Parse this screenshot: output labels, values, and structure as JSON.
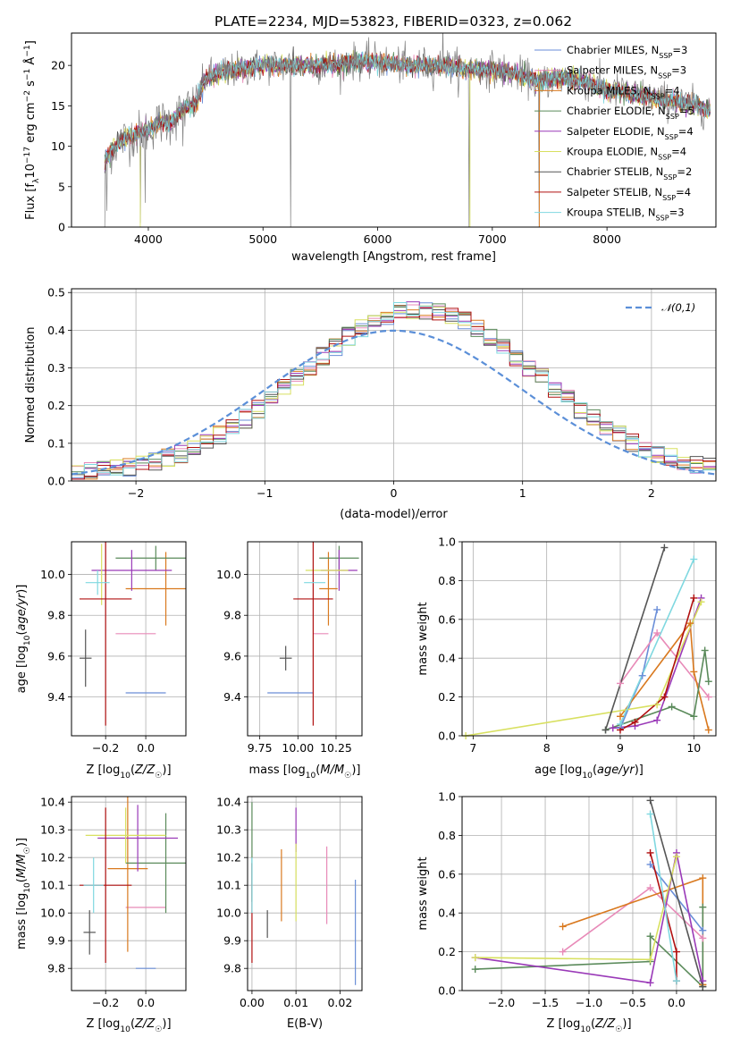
{
  "title": "PLATE=2234, MJD=53823, FIBERID=0323, z=0.062",
  "colors": [
    "#6a8ed8",
    "#e88ab8",
    "#d9791f",
    "#5a8a5a",
    "#9a3ab8",
    "#d8e060",
    "#555555",
    "#b01010",
    "#7fd8e0"
  ],
  "chart_data": [
    {
      "id": "spectrum",
      "type": "line",
      "title": "PLATE=2234, MJD=53823, FIBERID=0323, z=0.062",
      "xlabel": "wavelength [Angstrom, rest frame]",
      "ylabel": "Flux [f_λ 10^-17 erg cm^-2 s^-1 Å^-1]",
      "xlim": [
        3330,
        8950
      ],
      "ylim": [
        0,
        24
      ],
      "xticks": [
        "4000",
        "5000",
        "6000",
        "7000",
        "8000"
      ],
      "yticks": [
        "0",
        "5",
        "10",
        "15",
        "20"
      ],
      "grid": false,
      "legend": "top-right",
      "continuum": {
        "x": [
          3620,
          3700,
          3800,
          3900,
          4000,
          4100,
          4200,
          4300,
          4400,
          4500,
          4600,
          4800,
          5000,
          5200,
          5400,
          5600,
          5800,
          6000,
          6200,
          6400,
          6600,
          6800,
          7000,
          7200,
          7400,
          7600,
          7800,
          8000,
          8200,
          8400,
          8600,
          8800,
          8900
        ],
        "y": [
          8,
          10,
          11,
          11.5,
          12,
          13,
          13,
          14.5,
          15,
          18.5,
          19,
          19.5,
          20,
          20,
          20,
          20,
          20.5,
          20.5,
          20,
          20,
          20,
          19.5,
          19.5,
          19,
          18,
          18.5,
          18,
          17,
          16.5,
          16,
          15.5,
          15,
          14.5
        ]
      },
      "series": [
        {
          "name": "Chabrier MILES, N_SSP=3"
        },
        {
          "name": "Salpeter MILES, N_SSP=3"
        },
        {
          "name": "Kroupa MILES, N_SSP=4"
        },
        {
          "name": "Chabrier ELODIE, N_SSP=5"
        },
        {
          "name": "Salpeter ELODIE, N_SSP=4"
        },
        {
          "name": "Kroupa ELODIE, N_SSP=4"
        },
        {
          "name": "Chabrier STELIB, N_SSP=2"
        },
        {
          "name": "Salpeter STELIB, N_SSP=4"
        },
        {
          "name": "Kroupa STELIB, N_SSP=3"
        }
      ]
    },
    {
      "id": "residuals",
      "type": "histogram",
      "xlabel": "(data-model)/error",
      "ylabel": "Normed distribution",
      "xlim": [
        -2.5,
        2.5
      ],
      "ylim": [
        0,
        0.51
      ],
      "xticks": [
        "−2",
        "−1",
        "0",
        "1",
        "2"
      ],
      "yticks": [
        "0.0",
        "0.1",
        "0.2",
        "0.3",
        "0.4",
        "0.5"
      ],
      "grid": true,
      "legend": "top-right",
      "reference_name": "𝒩(0,1)",
      "bin_width": 0.1
    },
    {
      "id": "age_vs_Z",
      "type": "errorbar",
      "xlabel": "Z [log10(Z/Z☉)]",
      "ylabel": "age  [log10(age/yr)]",
      "xlim": [
        -0.37,
        0.2
      ],
      "ylim": [
        9.21,
        10.16
      ],
      "xticks": [
        "−0.2",
        "0.0"
      ],
      "yticks": [
        "9.4",
        "9.6",
        "9.8",
        "10.0"
      ],
      "grid": true,
      "points": [
        {
          "x": 0.0,
          "y": 9.42,
          "xe": 0.1,
          "ye": 0.0
        },
        {
          "x": -0.05,
          "y": 9.71,
          "xe": 0.1,
          "ye": 0.0
        },
        {
          "x": 0.1,
          "y": 9.93,
          "xe": 0.2,
          "ye": 0.18
        },
        {
          "x": 0.05,
          "y": 10.08,
          "xe": 0.2,
          "ye": 0.06
        },
        {
          "x": -0.07,
          "y": 10.02,
          "xe": 0.2,
          "ye": 0.1
        },
        {
          "x": -0.22,
          "y": 10.0,
          "xe": 0.0,
          "ye": 0.15
        },
        {
          "x": -0.3,
          "y": 9.59,
          "xe": 0.03,
          "ye": 0.14
        },
        {
          "x": -0.2,
          "y": 9.88,
          "xe": 0.13,
          "ye": 0.62
        },
        {
          "x": -0.24,
          "y": 9.96,
          "xe": 0.06,
          "ye": 0.06
        }
      ]
    },
    {
      "id": "age_vs_mass",
      "type": "errorbar",
      "xlabel": "mass [log10(M/M☉)]",
      "ylabel": "",
      "xlim": [
        9.67,
        10.42
      ],
      "ylim": [
        9.21,
        10.16
      ],
      "xticks": [
        "9.75",
        "10.00",
        "10.25"
      ],
      "yticks": [
        "9.4",
        "9.6",
        "9.8",
        "10.0"
      ],
      "grid": true,
      "points": [
        {
          "x": 9.95,
          "y": 9.42,
          "xe": 0.15,
          "ye": 0.0
        },
        {
          "x": 10.15,
          "y": 9.71,
          "xe": 0.05,
          "ye": 0.0
        },
        {
          "x": 10.2,
          "y": 9.93,
          "xe": 0.06,
          "ye": 0.18
        },
        {
          "x": 10.27,
          "y": 10.08,
          "xe": 0.13,
          "ye": 0.06
        },
        {
          "x": 10.27,
          "y": 10.02,
          "xe": 0.12,
          "ye": 0.1
        },
        {
          "x": 10.19,
          "y": 10.02,
          "xe": 0.14,
          "ye": 0.0
        },
        {
          "x": 9.92,
          "y": 9.59,
          "xe": 0.04,
          "ye": 0.06
        },
        {
          "x": 10.1,
          "y": 9.88,
          "xe": 0.13,
          "ye": 0.62
        },
        {
          "x": 10.11,
          "y": 9.96,
          "xe": 0.07,
          "ye": 0.0
        }
      ]
    },
    {
      "id": "weight_vs_age",
      "type": "line",
      "xlabel": "age  [log10(age/yr)]",
      "ylabel": "mass weight",
      "xlim": [
        6.85,
        10.3
      ],
      "ylim": [
        0,
        1.0
      ],
      "xticks": [
        "7",
        "8",
        "9",
        "10"
      ],
      "yticks": [
        "0.0",
        "0.2",
        "0.4",
        "0.6",
        "0.8",
        "1.0"
      ],
      "grid": true,
      "series": [
        {
          "x": [
            9.0,
            9.3,
            9.5
          ],
          "y": [
            0.04,
            0.31,
            0.65
          ]
        },
        {
          "x": [
            9.0,
            9.5,
            10.2
          ],
          "y": [
            0.27,
            0.53,
            0.2
          ]
        },
        {
          "x": [
            9.0,
            9.95,
            10.0,
            10.2
          ],
          "y": [
            0.1,
            0.58,
            0.33,
            0.03
          ]
        },
        {
          "x": [
            8.8,
            9.7,
            10.0,
            10.15,
            10.2
          ],
          "y": [
            0.03,
            0.15,
            0.1,
            0.44,
            0.28
          ]
        },
        {
          "x": [
            8.9,
            9.2,
            9.5,
            10.1
          ],
          "y": [
            0.04,
            0.05,
            0.08,
            0.71
          ]
        },
        {
          "x": [
            6.9,
            9.5,
            10.1
          ],
          "y": [
            0.0,
            0.16,
            0.69
          ]
        },
        {
          "x": [
            8.8,
            9.6
          ],
          "y": [
            0.03,
            0.97
          ]
        },
        {
          "x": [
            9.0,
            9.2,
            9.6,
            10.0
          ],
          "y": [
            0.03,
            0.07,
            0.2,
            0.71
          ]
        },
        {
          "x": [
            9.0,
            10.0
          ],
          "y": [
            0.06,
            0.91
          ]
        }
      ]
    },
    {
      "id": "mass_vs_Z",
      "type": "errorbar",
      "xlabel": "Z [log10(Z/Z☉)]",
      "ylabel": "mass [log10(M/M☉)]",
      "xlim": [
        -0.37,
        0.2
      ],
      "ylim": [
        9.72,
        10.42
      ],
      "xticks": [
        "−0.2",
        "0.0"
      ],
      "yticks": [
        "9.8",
        "9.9",
        "10.0",
        "10.1",
        "10.2",
        "10.3",
        "10.4"
      ],
      "grid": true,
      "points": [
        {
          "x": -0.0,
          "y": 9.8,
          "xe": 0.05,
          "ye": 0.0
        },
        {
          "x": 0.0,
          "y": 10.02,
          "xe": 0.1,
          "ye": 0.0
        },
        {
          "x": -0.09,
          "y": 10.16,
          "xe": 0.1,
          "ye": 0.3
        },
        {
          "x": 0.1,
          "y": 10.18,
          "xe": 0.2,
          "ye": 0.18
        },
        {
          "x": -0.04,
          "y": 10.27,
          "xe": 0.2,
          "ye": 0.12
        },
        {
          "x": -0.1,
          "y": 10.28,
          "xe": 0.2,
          "ye": 0.1
        },
        {
          "x": -0.28,
          "y": 9.93,
          "xe": 0.03,
          "ye": 0.08
        },
        {
          "x": -0.2,
          "y": 10.1,
          "xe": 0.13,
          "ye": 0.28
        },
        {
          "x": -0.26,
          "y": 10.1,
          "xe": 0.05,
          "ye": 0.1
        }
      ]
    },
    {
      "id": "mass_vs_EBV",
      "type": "errorbar",
      "xlabel": "E(B-V)",
      "ylabel": "",
      "xlim": [
        -0.001,
        0.025
      ],
      "ylim": [
        9.72,
        10.42
      ],
      "xticks": [
        "0.00",
        "0.01",
        "0.02"
      ],
      "yticks": [
        "9.8",
        "9.9",
        "10.0",
        "10.1",
        "10.2",
        "10.3",
        "10.4"
      ],
      "grid": true,
      "points": [
        {
          "x": 0.0235,
          "y": 9.93,
          "xe": 0.0,
          "ye": 0.19
        },
        {
          "x": 0.017,
          "y": 10.1,
          "xe": 0.0,
          "ye": 0.14
        },
        {
          "x": 0.0067,
          "y": 10.1,
          "xe": 0.0,
          "ye": 0.13
        },
        {
          "x": 0.0,
          "y": 10.22,
          "xe": 0.0,
          "ye": 0.18
        },
        {
          "x": 0.01,
          "y": 10.3,
          "xe": 0.0,
          "ye": 0.08
        },
        {
          "x": 0.01,
          "y": 10.11,
          "xe": 0.0,
          "ye": 0.14
        },
        {
          "x": 0.0035,
          "y": 9.96,
          "xe": 0.0,
          "ye": 0.05
        },
        {
          "x": 0.0,
          "y": 10.0,
          "xe": 0.0,
          "ye": 0.18
        },
        {
          "x": 0.0,
          "y": 10.1,
          "xe": 0.0,
          "ye": 0.1
        }
      ]
    },
    {
      "id": "weight_vs_Z",
      "type": "line",
      "xlabel": "Z [log10(Z/Z☉)]",
      "ylabel": "mass weight",
      "xlim": [
        -2.45,
        0.45
      ],
      "ylim": [
        0,
        1.0
      ],
      "xticks": [
        "−2.0",
        "−1.5",
        "−1.0",
        "−0.5",
        "0.0"
      ],
      "yticks": [
        "0.0",
        "0.2",
        "0.4",
        "0.6",
        "0.8",
        "1.0"
      ],
      "grid": true,
      "series": [
        {
          "x": [
            -0.3,
            0.3
          ],
          "y": [
            0.65,
            0.31
          ]
        },
        {
          "x": [
            -1.3,
            -0.3,
            0.3
          ],
          "y": [
            0.2,
            0.53,
            0.27
          ]
        },
        {
          "x": [
            -1.3,
            0.3,
            0.3,
            0.3
          ],
          "y": [
            0.33,
            0.58,
            0.03,
            0.03
          ]
        },
        {
          "x": [
            -2.3,
            -0.3,
            -0.3,
            0.3,
            0.3
          ],
          "y": [
            0.11,
            0.15,
            0.28,
            0.02,
            0.43
          ]
        },
        {
          "x": [
            -2.3,
            -0.3,
            0.0,
            0.3
          ],
          "y": [
            0.17,
            0.04,
            0.71,
            0.05
          ]
        },
        {
          "x": [
            -2.3,
            -0.3,
            0.0
          ],
          "y": [
            0.17,
            0.16,
            0.69
          ]
        },
        {
          "x": [
            -0.3,
            0.3
          ],
          "y": [
            0.98,
            0.02
          ]
        },
        {
          "x": [
            -0.3,
            0.0,
            0.0
          ],
          "y": [
            0.71,
            0.2,
            0.05
          ]
        },
        {
          "x": [
            -0.3,
            0.0
          ],
          "y": [
            0.91,
            0.05
          ]
        }
      ]
    }
  ]
}
